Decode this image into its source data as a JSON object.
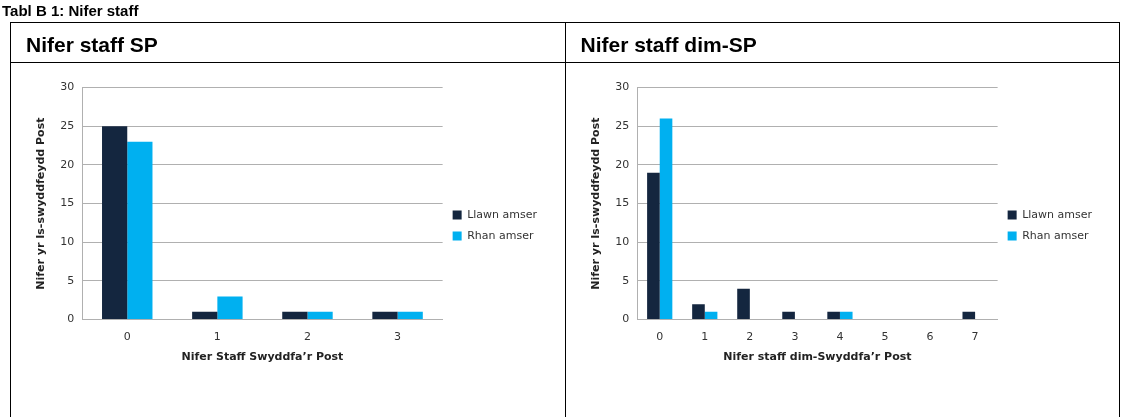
{
  "chart_data": [
    {
      "type": "bar",
      "title": "Nifer staff SP",
      "xlabel": "Nifer Staff Swyddfa’r Post",
      "ylabel": "Nifer yr Is-swyddfeydd Post",
      "annotations": [
        "Tabl B 1: Nifer staff"
      ],
      "categories": [
        "0",
        "1",
        "2",
        "3"
      ],
      "series": [
        {
          "name": "Llawn amser",
          "color": "#14263f",
          "values": [
            25,
            1,
            1,
            1
          ]
        },
        {
          "name": "Rhan amser",
          "color": "#00b0f0",
          "values": [
            23,
            3,
            1,
            1
          ]
        }
      ],
      "ylim": [
        0,
        30
      ],
      "yticks": [
        0,
        5,
        10,
        15,
        20,
        25,
        30
      ],
      "grid": "y",
      "legend": "right"
    },
    {
      "type": "bar",
      "title": "Nifer staff dim-SP",
      "xlabel": "Nifer staff dim-Swyddfa’r Post",
      "ylabel": "Nifer yr Is-swyddfeydd Post",
      "categories": [
        "0",
        "1",
        "2",
        "3",
        "4",
        "5",
        "6",
        "7"
      ],
      "series": [
        {
          "name": "Llawn amser",
          "color": "#14263f",
          "values": [
            19,
            2,
            4,
            1,
            1,
            0,
            0,
            1
          ]
        },
        {
          "name": "Rhan amser",
          "color": "#00b0f0",
          "values": [
            26,
            1,
            0,
            0,
            1,
            0,
            0,
            0
          ]
        }
      ],
      "ylim": [
        0,
        30
      ],
      "yticks": [
        0,
        5,
        10,
        15,
        20,
        25,
        30
      ],
      "grid": "y",
      "legend": "right"
    }
  ]
}
